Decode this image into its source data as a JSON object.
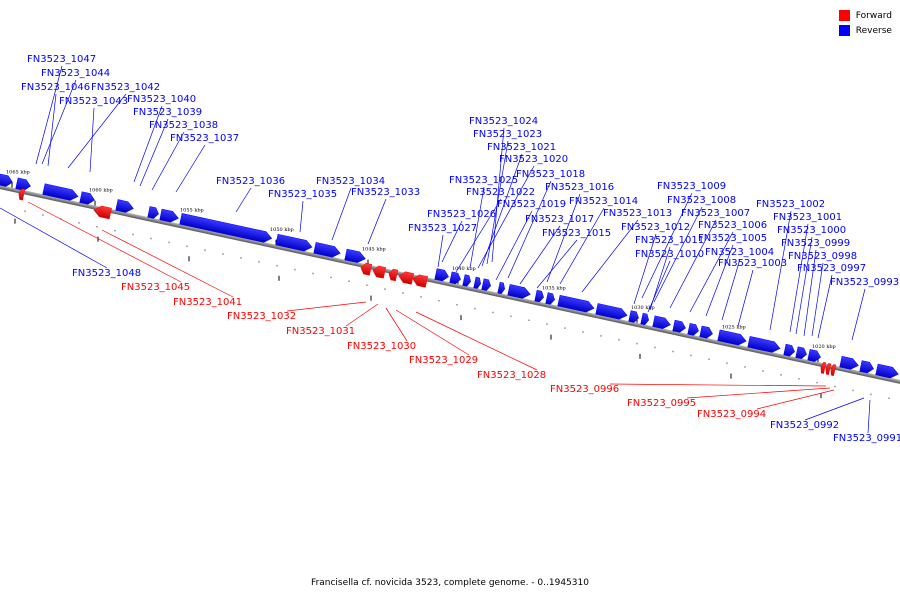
{
  "legend": [
    {
      "label": "Forward",
      "color": "#ff0000"
    },
    {
      "label": "Reverse",
      "color": "#0000ff"
    }
  ],
  "caption": "Francisella cf. novicida 3523, complete genome. - 0..1945310",
  "ticks": [
    {
      "kbp": 1065,
      "label": "1065 kbp"
    },
    {
      "kbp": 1060,
      "label": "1060 kbp"
    },
    {
      "kbp": 1055,
      "label": "1055 kbp"
    },
    {
      "kbp": 1050,
      "label": "1050 kbp"
    },
    {
      "kbp": 1045,
      "label": "1045 kbp"
    },
    {
      "kbp": 1040,
      "label": "1040 kbp"
    },
    {
      "kbp": 1035,
      "label": "1035 kbp"
    },
    {
      "kbp": 1030,
      "label": "1030 kbp"
    },
    {
      "kbp": 1025,
      "label": "1025 kbp"
    },
    {
      "kbp": 1020,
      "label": "1020 kbp"
    }
  ],
  "reverse_genes": [
    "FN3523_1047",
    "FN3523_1044",
    "FN3523_1046",
    "FN3523_1042",
    "FN3523_1043",
    "FN3523_1040",
    "FN3523_1039",
    "FN3523_1038",
    "FN3523_1037",
    "FN3523_1036",
    "FN3523_1035",
    "FN3523_1034",
    "FN3523_1033",
    "FN3523_1024",
    "FN3523_1023",
    "FN3523_1021",
    "FN3523_1020",
    "FN3523_1025",
    "FN3523_1018",
    "FN3523_1022",
    "FN3523_1016",
    "FN3523_1019",
    "FN3523_1014",
    "FN3523_1026",
    "FN3523_1017",
    "FN3523_1013",
    "FN3523_1027",
    "FN3523_1015",
    "FN3523_1009",
    "FN3523_1008",
    "FN3523_1007",
    "FN3523_1012",
    "FN3523_1006",
    "FN3523_1011",
    "FN3523_1005",
    "FN3523_1010",
    "FN3523_1004",
    "FN3523_1003",
    "FN3523_1002",
    "FN3523_1001",
    "FN3523_1000",
    "FN3523_0999",
    "FN3523_0998",
    "FN3523_0997",
    "FN3523_0993",
    "FN3523_1048",
    "FN3523_0992",
    "FN3523_0991"
  ],
  "forward_genes": [
    "FN3523_1045",
    "FN3523_1041",
    "FN3523_1032",
    "FN3523_1031",
    "FN3523_1030",
    "FN3523_1029",
    "FN3523_1028",
    "FN3523_0996",
    "FN3523_0995",
    "FN3523_0994"
  ]
}
